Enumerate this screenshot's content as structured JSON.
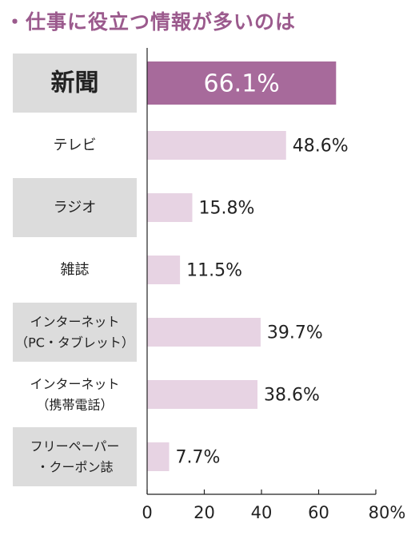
{
  "title": "・仕事に役立つ情報が多いのは",
  "chart_data": {
    "type": "bar",
    "orientation": "horizontal",
    "title": "・仕事に役立つ情報が多いのは",
    "categories": [
      [
        "新聞"
      ],
      [
        "テレビ"
      ],
      [
        "ラジオ"
      ],
      [
        "雑誌"
      ],
      [
        "インターネット",
        "（PC・タブレット）"
      ],
      [
        "インターネット",
        "（携帯電話）"
      ],
      [
        "フリーペーパー",
        "・クーポン誌"
      ]
    ],
    "values": [
      66.1,
      48.6,
      15.8,
      11.5,
      39.7,
      38.6,
      7.7
    ],
    "value_labels": [
      "66.1%",
      "48.6%",
      "15.8%",
      "11.5%",
      "39.7%",
      "38.6%",
      "7.7%"
    ],
    "highlight_index": 0,
    "xlim": [
      0,
      80
    ],
    "ticks": [
      0,
      20,
      40,
      60,
      80
    ],
    "tick_labels": [
      "0",
      "20",
      "40",
      "60",
      "80%"
    ],
    "colors": {
      "highlight": "#a76a9b",
      "bar": "#e7d3e3",
      "category_box": "#dcdcdc",
      "title": "#9b5a8d"
    }
  }
}
